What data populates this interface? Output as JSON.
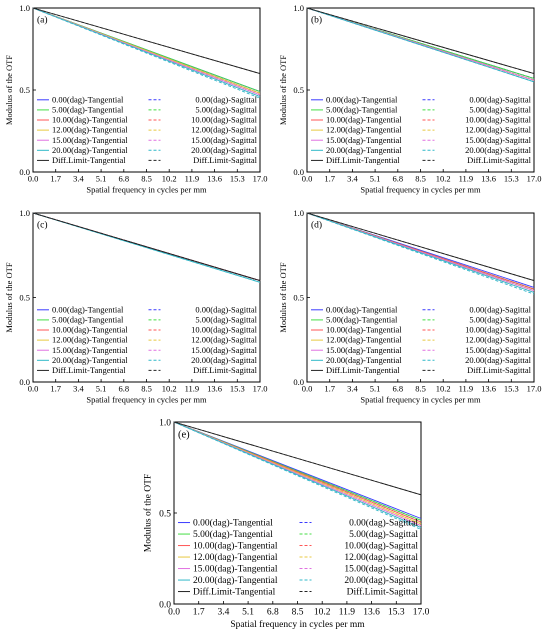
{
  "figure": {
    "y_axis_label": "Modulus of the OTF",
    "x_axis_label": "Spatial frequency in cycles per mm",
    "x_ticks": [
      "0.0",
      "1.7",
      "3.4",
      "5.1",
      "6.8",
      "8.5",
      "10.2",
      "11.9",
      "13.6",
      "15.3",
      "17.0"
    ],
    "y_ticks": [
      "0.0",
      "0.5",
      "1.0"
    ],
    "legend": {
      "tangential": [
        "0.00(dag)-Tangential",
        "5.00(dag)-Tangential",
        "10.00(dag)-Tangential",
        "12.00(dag)-Tangential",
        "15.00(dag)-Tangential",
        "20.00(dag)-Tangential",
        "Diff.Limit-Tangential"
      ],
      "sagittal": [
        "0.00(dag)-Sagittal",
        "5.00(dag)-Sagittal",
        "10.00(dag)-Sagittal",
        "12.00(dag)-Sagittal",
        "15.00(dag)-Sagittal",
        "20.00(dag)-Sagittal",
        "Diff.Limit-Sagittal"
      ],
      "colors": [
        "#3a3aff",
        "#44dd44",
        "#ff5555",
        "#e8c840",
        "#e070e0",
        "#30b8c8",
        "#222222"
      ]
    }
  },
  "chart_data": [
    {
      "type": "line",
      "panel_label": "(a)",
      "x": [
        0,
        17
      ],
      "xlim": [
        0,
        17
      ],
      "ylim": [
        0,
        1
      ],
      "xlabel": "Spatial frequency in cycles per mm",
      "ylabel": "Modulus of the OTF",
      "grid": false,
      "legend_position": "bottom-left",
      "series": [
        {
          "name": "0.00(dag)-Tangential",
          "values": [
            1.0,
            0.49
          ]
        },
        {
          "name": "0.00(dag)-Sagittal",
          "values": [
            1.0,
            0.48
          ]
        },
        {
          "name": "5.00(dag)-Tangential",
          "values": [
            1.0,
            0.49
          ]
        },
        {
          "name": "5.00(dag)-Sagittal",
          "values": [
            1.0,
            0.48
          ]
        },
        {
          "name": "10.00(dag)-Tangential",
          "values": [
            1.0,
            0.48
          ]
        },
        {
          "name": "10.00(dag)-Sagittal",
          "values": [
            1.0,
            0.47
          ]
        },
        {
          "name": "12.00(dag)-Tangential",
          "values": [
            1.0,
            0.48
          ]
        },
        {
          "name": "12.00(dag)-Sagittal",
          "values": [
            1.0,
            0.47
          ]
        },
        {
          "name": "15.00(dag)-Tangential",
          "values": [
            1.0,
            0.47
          ]
        },
        {
          "name": "15.00(dag)-Sagittal",
          "values": [
            1.0,
            0.46
          ]
        },
        {
          "name": "20.00(dag)-Tangential",
          "values": [
            1.0,
            0.46
          ]
        },
        {
          "name": "20.00(dag)-Sagittal",
          "values": [
            1.0,
            0.45
          ]
        },
        {
          "name": "Diff.Limit-Tangential",
          "values": [
            1.0,
            0.6
          ]
        },
        {
          "name": "Diff.Limit-Sagittal",
          "values": [
            1.0,
            0.6
          ]
        }
      ]
    },
    {
      "type": "line",
      "panel_label": "(b)",
      "x": [
        0,
        17
      ],
      "xlim": [
        0,
        17
      ],
      "ylim": [
        0,
        1
      ],
      "xlabel": "Spatial frequency in cycles per mm",
      "ylabel": "Modulus of the OTF",
      "grid": false,
      "legend_position": "bottom-left",
      "series": [
        {
          "name": "0.00(dag)-Tangential",
          "values": [
            1.0,
            0.57
          ]
        },
        {
          "name": "0.00(dag)-Sagittal",
          "values": [
            1.0,
            0.57
          ]
        },
        {
          "name": "5.00(dag)-Tangential",
          "values": [
            1.0,
            0.57
          ]
        },
        {
          "name": "5.00(dag)-Sagittal",
          "values": [
            1.0,
            0.57
          ]
        },
        {
          "name": "10.00(dag)-Tangential",
          "values": [
            1.0,
            0.56
          ]
        },
        {
          "name": "10.00(dag)-Sagittal",
          "values": [
            1.0,
            0.56
          ]
        },
        {
          "name": "12.00(dag)-Tangential",
          "values": [
            1.0,
            0.56
          ]
        },
        {
          "name": "12.00(dag)-Sagittal",
          "values": [
            1.0,
            0.56
          ]
        },
        {
          "name": "15.00(dag)-Tangential",
          "values": [
            1.0,
            0.56
          ]
        },
        {
          "name": "15.00(dag)-Sagittal",
          "values": [
            1.0,
            0.55
          ]
        },
        {
          "name": "20.00(dag)-Tangential",
          "values": [
            1.0,
            0.55
          ]
        },
        {
          "name": "20.00(dag)-Sagittal",
          "values": [
            1.0,
            0.55
          ]
        },
        {
          "name": "Diff.Limit-Tangential",
          "values": [
            1.0,
            0.6
          ]
        },
        {
          "name": "Diff.Limit-Sagittal",
          "values": [
            1.0,
            0.6
          ]
        }
      ]
    },
    {
      "type": "line",
      "panel_label": "(c)",
      "x": [
        0,
        17
      ],
      "xlim": [
        0,
        17
      ],
      "ylim": [
        0,
        1
      ],
      "xlabel": "Spatial frequency in cycles per mm",
      "ylabel": "Modulus of the OTF",
      "grid": false,
      "legend_position": "bottom-left",
      "series": [
        {
          "name": "0.00(dag)-Tangential",
          "values": [
            1.0,
            0.6
          ]
        },
        {
          "name": "0.00(dag)-Sagittal",
          "values": [
            1.0,
            0.6
          ]
        },
        {
          "name": "5.00(dag)-Tangential",
          "values": [
            1.0,
            0.6
          ]
        },
        {
          "name": "5.00(dag)-Sagittal",
          "values": [
            1.0,
            0.6
          ]
        },
        {
          "name": "10.00(dag)-Tangential",
          "values": [
            1.0,
            0.6
          ]
        },
        {
          "name": "10.00(dag)-Sagittal",
          "values": [
            1.0,
            0.6
          ]
        },
        {
          "name": "12.00(dag)-Tangential",
          "values": [
            1.0,
            0.6
          ]
        },
        {
          "name": "12.00(dag)-Sagittal",
          "values": [
            1.0,
            0.6
          ]
        },
        {
          "name": "15.00(dag)-Tangential",
          "values": [
            1.0,
            0.6
          ]
        },
        {
          "name": "15.00(dag)-Sagittal",
          "values": [
            1.0,
            0.6
          ]
        },
        {
          "name": "20.00(dag)-Tangential",
          "values": [
            1.0,
            0.59
          ]
        },
        {
          "name": "20.00(dag)-Sagittal",
          "values": [
            1.0,
            0.59
          ]
        },
        {
          "name": "Diff.Limit-Tangential",
          "values": [
            1.0,
            0.6
          ]
        },
        {
          "name": "Diff.Limit-Sagittal",
          "values": [
            1.0,
            0.6
          ]
        }
      ]
    },
    {
      "type": "line",
      "panel_label": "(d)",
      "x": [
        0,
        17
      ],
      "xlim": [
        0,
        17
      ],
      "ylim": [
        0,
        1
      ],
      "xlabel": "Spatial frequency in cycles per mm",
      "ylabel": "Modulus of the OTF",
      "grid": false,
      "legend_position": "bottom-left",
      "series": [
        {
          "name": "0.00(dag)-Tangential",
          "values": [
            1.0,
            0.56
          ]
        },
        {
          "name": "0.00(dag)-Sagittal",
          "values": [
            1.0,
            0.55
          ]
        },
        {
          "name": "5.00(dag)-Tangential",
          "values": [
            1.0,
            0.55
          ]
        },
        {
          "name": "5.00(dag)-Sagittal",
          "values": [
            1.0,
            0.55
          ]
        },
        {
          "name": "10.00(dag)-Tangential",
          "values": [
            1.0,
            0.55
          ]
        },
        {
          "name": "10.00(dag)-Sagittal",
          "values": [
            1.0,
            0.54
          ]
        },
        {
          "name": "12.00(dag)-Tangential",
          "values": [
            1.0,
            0.54
          ]
        },
        {
          "name": "12.00(dag)-Sagittal",
          "values": [
            1.0,
            0.54
          ]
        },
        {
          "name": "15.00(dag)-Tangential",
          "values": [
            1.0,
            0.54
          ]
        },
        {
          "name": "15.00(dag)-Sagittal",
          "values": [
            1.0,
            0.53
          ]
        },
        {
          "name": "20.00(dag)-Tangential",
          "values": [
            1.0,
            0.53
          ]
        },
        {
          "name": "20.00(dag)-Sagittal",
          "values": [
            1.0,
            0.52
          ]
        },
        {
          "name": "Diff.Limit-Tangential",
          "values": [
            1.0,
            0.6
          ]
        },
        {
          "name": "Diff.Limit-Sagittal",
          "values": [
            1.0,
            0.6
          ]
        }
      ]
    },
    {
      "type": "line",
      "panel_label": "(e)",
      "x": [
        0,
        17
      ],
      "xlim": [
        0,
        17
      ],
      "ylim": [
        0,
        1
      ],
      "xlabel": "Spatial frequency in cycles per mm",
      "ylabel": "Modulus of the OTF",
      "grid": false,
      "legend_position": "bottom-left",
      "series": [
        {
          "name": "0.00(dag)-Tangential",
          "values": [
            1.0,
            0.47
          ]
        },
        {
          "name": "0.00(dag)-Sagittal",
          "values": [
            1.0,
            0.46
          ]
        },
        {
          "name": "5.00(dag)-Tangential",
          "values": [
            1.0,
            0.46
          ]
        },
        {
          "name": "5.00(dag)-Sagittal",
          "values": [
            1.0,
            0.45
          ]
        },
        {
          "name": "10.00(dag)-Tangential",
          "values": [
            1.0,
            0.45
          ]
        },
        {
          "name": "10.00(dag)-Sagittal",
          "values": [
            1.0,
            0.44
          ]
        },
        {
          "name": "12.00(dag)-Tangential",
          "values": [
            1.0,
            0.44
          ]
        },
        {
          "name": "12.00(dag)-Sagittal",
          "values": [
            1.0,
            0.43
          ]
        },
        {
          "name": "15.00(dag)-Tangential",
          "values": [
            1.0,
            0.43
          ]
        },
        {
          "name": "15.00(dag)-Sagittal",
          "values": [
            1.0,
            0.42
          ]
        },
        {
          "name": "20.00(dag)-Tangential",
          "values": [
            1.0,
            0.42
          ]
        },
        {
          "name": "20.00(dag)-Sagittal",
          "values": [
            1.0,
            0.41
          ]
        },
        {
          "name": "Diff.Limit-Tangential",
          "values": [
            1.0,
            0.6
          ]
        },
        {
          "name": "Diff.Limit-Sagittal",
          "values": [
            1.0,
            0.6
          ]
        }
      ]
    }
  ]
}
